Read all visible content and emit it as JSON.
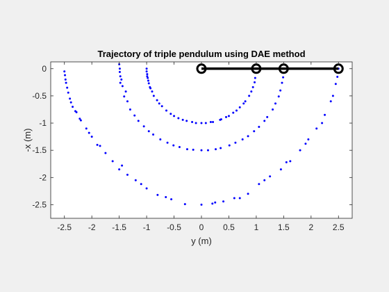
{
  "chart_data": {
    "type": "scatter",
    "title": "Trajectory of triple pendulum using DAE method",
    "xlabel": "y (m)",
    "ylabel": "-x (m)",
    "xlim": [
      -2.75,
      2.75
    ],
    "ylim": [
      -2.75,
      0.125
    ],
    "xticks": [
      -2.5,
      -2,
      -1.5,
      -1,
      -0.5,
      0,
      0.5,
      1,
      1.5,
      2,
      2.5
    ],
    "xtick_labels": [
      "-2.5",
      "-2",
      "-1.5",
      "-1",
      "-0.5",
      "0",
      "0.5",
      "1",
      "1.5",
      "2",
      "2.5"
    ],
    "yticks": [
      0,
      -0.5,
      -1,
      -1.5,
      -2,
      -2.5
    ],
    "ytick_labels": [
      "0",
      "-0.5",
      "-1",
      "-1.5",
      "-2",
      "-2.5"
    ],
    "grid": false,
    "legend": null,
    "series": [
      {
        "role": "trajectory",
        "marker": "dot",
        "color": "#0000ff",
        "points": [
          [
            1.0,
            0.0
          ],
          [
            0.98,
            -0.17
          ],
          [
            0.94,
            -0.34
          ],
          [
            0.87,
            -0.5
          ],
          [
            0.77,
            -0.64
          ],
          [
            0.64,
            -0.77
          ],
          [
            0.5,
            -0.87
          ],
          [
            0.34,
            -0.94
          ],
          [
            0.17,
            -0.98
          ],
          [
            0.0,
            -1.0
          ],
          [
            -0.17,
            -0.98
          ],
          [
            -0.34,
            -0.94
          ],
          [
            -0.5,
            -0.87
          ],
          [
            -0.64,
            -0.77
          ],
          [
            -0.77,
            -0.64
          ],
          [
            -0.87,
            -0.5
          ],
          [
            -0.94,
            -0.34
          ],
          [
            -0.98,
            -0.17
          ],
          [
            -1.0,
            0.0
          ],
          [
            -1.0,
            -0.05
          ],
          [
            -0.99,
            -0.1
          ],
          [
            -0.99,
            -0.14
          ],
          [
            -0.97,
            -0.22
          ],
          [
            -0.96,
            -0.27
          ],
          [
            -0.93,
            -0.36
          ],
          [
            -0.9,
            -0.42
          ],
          [
            -0.81,
            -0.58
          ],
          [
            -0.72,
            -0.69
          ],
          [
            -0.56,
            -0.83
          ],
          [
            -0.42,
            -0.91
          ],
          [
            -0.27,
            -0.96
          ],
          [
            -0.1,
            -1.0
          ],
          [
            0.08,
            -1.0
          ],
          [
            0.21,
            -0.98
          ],
          [
            0.36,
            -0.93
          ],
          [
            0.45,
            -0.89
          ],
          [
            0.58,
            -0.81
          ],
          [
            0.7,
            -0.71
          ],
          [
            0.8,
            -0.6
          ],
          [
            0.91,
            -0.42
          ],
          [
            0.97,
            -0.25
          ],
          [
            1.5,
            0.0
          ],
          [
            1.47,
            -0.26
          ],
          [
            1.41,
            -0.51
          ],
          [
            1.3,
            -0.75
          ],
          [
            1.15,
            -0.96
          ],
          [
            0.96,
            -1.15
          ],
          [
            0.75,
            -1.3
          ],
          [
            0.51,
            -1.41
          ],
          [
            0.26,
            -1.48
          ],
          [
            0.0,
            -1.5
          ],
          [
            -0.26,
            -1.48
          ],
          [
            -0.51,
            -1.41
          ],
          [
            -0.75,
            -1.3
          ],
          [
            -0.96,
            -1.15
          ],
          [
            -1.15,
            -0.96
          ],
          [
            -1.3,
            -0.75
          ],
          [
            -1.41,
            -0.51
          ],
          [
            -1.48,
            -0.26
          ],
          [
            -1.5,
            0.08
          ],
          [
            -1.49,
            0.0
          ],
          [
            -1.49,
            -0.06
          ],
          [
            -1.48,
            -0.14
          ],
          [
            -1.46,
            -0.2
          ],
          [
            -1.44,
            -0.32
          ],
          [
            -1.38,
            -0.42
          ],
          [
            -1.35,
            -0.6
          ],
          [
            -1.22,
            -0.86
          ],
          [
            -1.05,
            -1.06
          ],
          [
            -0.88,
            -1.21
          ],
          [
            -0.62,
            -1.36
          ],
          [
            -0.4,
            -1.44
          ],
          [
            -0.15,
            -1.49
          ],
          [
            0.12,
            -1.5
          ],
          [
            0.35,
            -1.46
          ],
          [
            0.62,
            -1.36
          ],
          [
            0.85,
            -1.24
          ],
          [
            1.05,
            -1.07
          ],
          [
            1.2,
            -0.89
          ],
          [
            1.35,
            -0.64
          ],
          [
            1.44,
            -0.4
          ],
          [
            1.49,
            -0.16
          ],
          [
            2.5,
            0.0
          ],
          [
            2.45,
            -0.28
          ],
          [
            2.36,
            -0.6
          ],
          [
            2.25,
            -0.85
          ],
          [
            2.1,
            -1.1
          ],
          [
            1.95,
            -1.3
          ],
          [
            1.8,
            -1.5
          ],
          [
            1.62,
            -1.7
          ],
          [
            1.45,
            -1.85
          ],
          [
            1.25,
            -1.98
          ],
          [
            1.05,
            -2.12
          ],
          [
            0.85,
            -2.3
          ],
          [
            0.6,
            -2.38
          ],
          [
            0.4,
            -2.44
          ],
          [
            0.2,
            -2.48
          ],
          [
            0.0,
            -2.5
          ],
          [
            -0.3,
            -2.49
          ],
          [
            -0.55,
            -2.4
          ],
          [
            -0.8,
            -2.32
          ],
          [
            -1.0,
            -2.2
          ],
          [
            -1.2,
            -2.05
          ],
          [
            -1.35,
            -1.95
          ],
          [
            -1.5,
            -1.85
          ],
          [
            -1.62,
            -1.7
          ],
          [
            -1.75,
            -1.55
          ],
          [
            -1.9,
            -1.4
          ],
          [
            -2.0,
            -1.25
          ],
          [
            -2.1,
            -1.1
          ],
          [
            -2.2,
            -0.95
          ],
          [
            -2.28,
            -0.8
          ],
          [
            -2.35,
            -0.7
          ],
          [
            -2.4,
            -0.55
          ],
          [
            -2.45,
            -0.35
          ],
          [
            -2.48,
            -0.2
          ],
          [
            -2.5,
            -0.05
          ],
          [
            -2.49,
            -0.12
          ],
          [
            -2.47,
            -0.26
          ],
          [
            -2.43,
            -0.44
          ],
          [
            -2.38,
            -0.62
          ],
          [
            -2.3,
            -0.78
          ],
          [
            -2.22,
            -0.92
          ],
          [
            -2.05,
            -1.18
          ],
          [
            -1.85,
            -1.42
          ],
          [
            -1.45,
            -1.78
          ],
          [
            -1.1,
            -2.12
          ],
          [
            -0.65,
            -2.36
          ],
          [
            0.25,
            -2.46
          ],
          [
            0.7,
            -2.38
          ],
          [
            1.15,
            -2.05
          ],
          [
            1.55,
            -1.72
          ],
          [
            1.9,
            -1.38
          ],
          [
            2.2,
            -1.0
          ],
          [
            2.4,
            -0.5
          ],
          [
            2.48,
            -0.15
          ]
        ]
      },
      {
        "role": "pendulum",
        "marker": "open-circle",
        "line": true,
        "color": "#000000",
        "points": [
          [
            0,
            0
          ],
          [
            1,
            0
          ],
          [
            1.5,
            0
          ],
          [
            2.5,
            0
          ]
        ]
      }
    ]
  }
}
